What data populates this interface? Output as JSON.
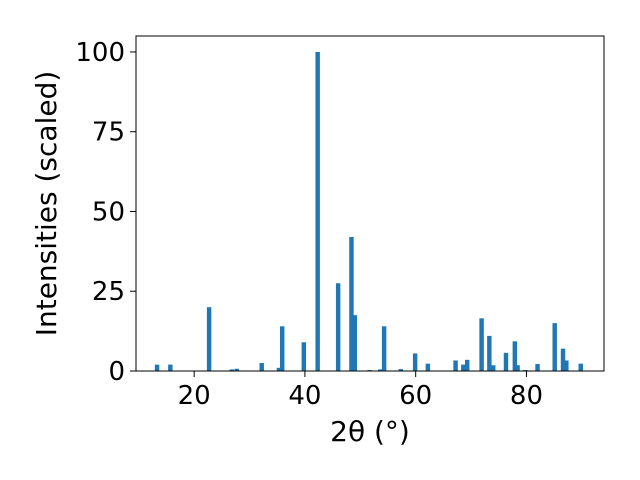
{
  "chart_data": {
    "type": "bar",
    "xlabel": "2θ (°)",
    "ylabel": "Intensities (scaled)",
    "xlim": [
      9.5,
      94
    ],
    "ylim": [
      0,
      105
    ],
    "x_ticks": [
      20,
      40,
      60,
      80
    ],
    "y_ticks": [
      0,
      25,
      50,
      75,
      100
    ],
    "grid": false,
    "bar_color": "#1f77b4",
    "bar_width": 0.8,
    "x": [
      13.3,
      15.7,
      22.7,
      26.8,
      27.7,
      32.2,
      35.3,
      35.9,
      39.8,
      42.3,
      46.0,
      48.4,
      49.0,
      51.7,
      53.6,
      54.3,
      57.3,
      59.9,
      62.2,
      67.2,
      68.6,
      69.3,
      71.9,
      73.3,
      74.0,
      76.3,
      77.9,
      78.4,
      79.8,
      82.0,
      85.1,
      86.6,
      87.2,
      89.8
    ],
    "values": [
      2,
      2,
      20,
      0.5,
      0.7,
      2.5,
      1,
      14,
      9,
      100,
      27.5,
      42,
      17.5,
      0.3,
      0.5,
      14,
      0.6,
      5.5,
      2.3,
      3.3,
      2,
      3.5,
      16.5,
      11,
      1.8,
      5.7,
      9.3,
      1.8,
      0.3,
      2.2,
      15,
      7,
      3.3,
      2.3
    ]
  }
}
